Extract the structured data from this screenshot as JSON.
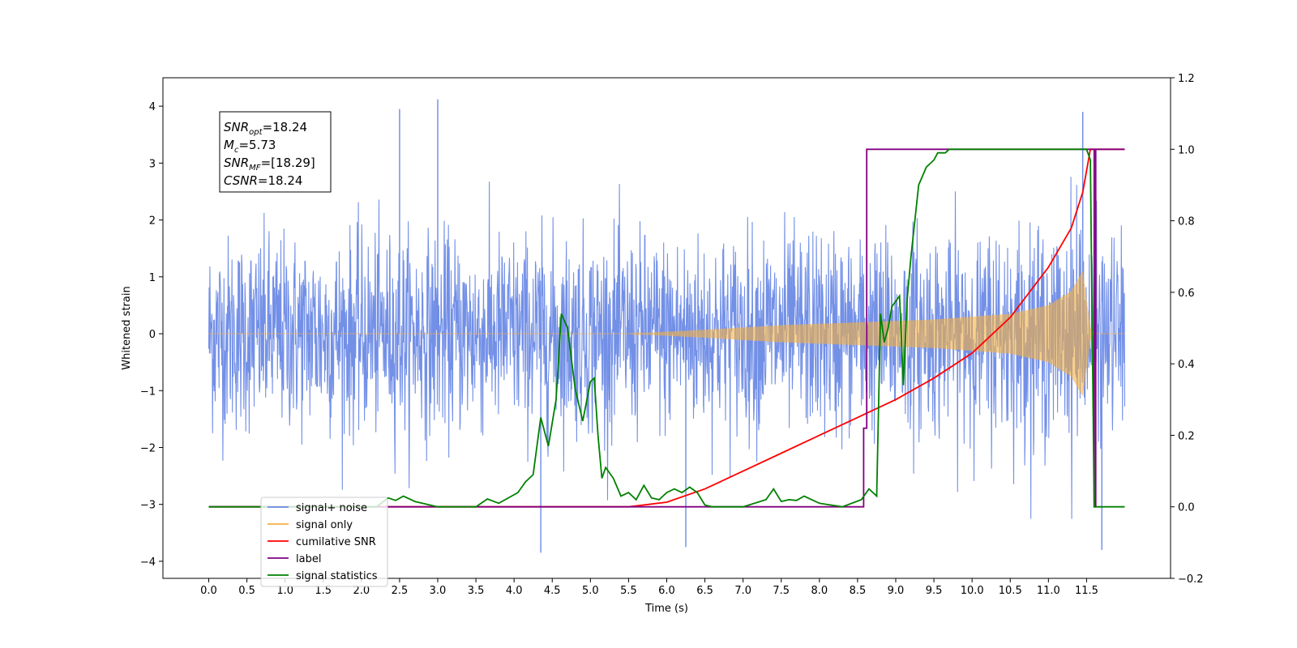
{
  "chart_data": {
    "type": "line",
    "xlabel": "Time (s)",
    "ylabel_left": "Whitened strain",
    "ylabel_right": "",
    "xlim": [
      -0.6,
      12.6
    ],
    "ylim_left": [
      -4.3,
      4.5
    ],
    "ylim_right": [
      -0.2,
      1.2
    ],
    "x_ticks": [
      0.0,
      0.5,
      1.0,
      1.5,
      2.0,
      2.5,
      3.0,
      3.5,
      4.0,
      4.5,
      5.0,
      5.5,
      6.0,
      6.5,
      7.0,
      7.5,
      8.0,
      8.5,
      9.0,
      9.5,
      10.0,
      10.5,
      11.0,
      11.5
    ],
    "x_tick_labels": [
      "0.0",
      "0.5",
      "1.0",
      "1.5",
      "2.0",
      "2.5",
      "3.0",
      "3.5",
      "4.0",
      "4.5",
      "5.0",
      "5.5",
      "6.0",
      "6.5",
      "7.0",
      "7.5",
      "8.0",
      "8.5",
      "9.0",
      "9.5",
      "10.0",
      "10.5",
      "11.0",
      "11.5"
    ],
    "y_ticks_left": [
      -4,
      -3,
      -2,
      -1,
      0,
      1,
      2,
      3,
      4
    ],
    "y_tick_labels_left": [
      "−4",
      "−3",
      "−2",
      "−1",
      "0",
      "1",
      "2",
      "3",
      "4"
    ],
    "y_ticks_right": [
      -0.2,
      0.0,
      0.2,
      0.4,
      0.6,
      0.8,
      1.0,
      1.2
    ],
    "y_tick_labels_right": [
      "−0.2",
      "0.0",
      "0.2",
      "0.4",
      "0.6",
      "0.8",
      "1.0",
      "1.2"
    ],
    "grid": false,
    "legend_position": "lower-left",
    "annotation_box": {
      "lines": [
        {
          "sym": "SNR",
          "sub": "opt",
          "rest": "=18.24"
        },
        {
          "sym": "M",
          "sub": "c",
          "rest": "=5.73"
        },
        {
          "sym": "SNR",
          "sub": "MF",
          "rest": "=[18.29]"
        },
        {
          "sym": "CSNR",
          "sub": "",
          "rest": "=18.24"
        }
      ]
    },
    "series": [
      {
        "name": "signal+ noise",
        "axis": "left",
        "color": "#6b8ae6",
        "kind": "noise",
        "x_range": [
          0.0,
          12.0
        ],
        "approx_envelope": [
          -2.5,
          2.5
        ],
        "approx_peaks": [
          [
            2.5,
            3.95
          ],
          [
            3.0,
            4.12
          ],
          [
            11.45,
            3.9
          ],
          [
            4.35,
            -3.85
          ],
          [
            6.25,
            -3.75
          ],
          [
            11.7,
            -3.8
          ]
        ]
      },
      {
        "name": "signal only",
        "axis": "left",
        "color": "#f5b041",
        "kind": "chirp",
        "x_range": [
          0.0,
          12.0
        ],
        "approx_amplitude": [
          [
            0.0,
            0.0
          ],
          [
            5.5,
            0.0
          ],
          [
            6.5,
            0.07
          ],
          [
            7.5,
            0.15
          ],
          [
            8.5,
            0.2
          ],
          [
            9.5,
            0.25
          ],
          [
            10.5,
            0.35
          ],
          [
            11.0,
            0.5
          ],
          [
            11.3,
            0.75
          ],
          [
            11.45,
            1.1
          ],
          [
            11.55,
            0.1
          ],
          [
            11.6,
            0.0
          ],
          [
            12.0,
            0.0
          ]
        ]
      },
      {
        "name": "cumilative SNR",
        "axis": "right",
        "color": "#ff0000",
        "x": [
          0.0,
          5.5,
          6.0,
          6.5,
          7.0,
          7.5,
          8.0,
          8.5,
          9.0,
          9.5,
          10.0,
          10.5,
          11.0,
          11.3,
          11.45,
          11.55,
          11.56,
          12.0
        ],
        "y": [
          0.0,
          0.0,
          0.013,
          0.05,
          0.1,
          0.15,
          0.2,
          0.25,
          0.3,
          0.36,
          0.43,
          0.53,
          0.67,
          0.78,
          0.88,
          1.0,
          1.0,
          1.0
        ]
      },
      {
        "name": "label",
        "axis": "right",
        "color": "#800080",
        "x": [
          0.0,
          8.58,
          8.58,
          8.62,
          8.62,
          11.6,
          11.6,
          11.62,
          11.62,
          12.0
        ],
        "y": [
          0.0,
          0.0,
          0.22,
          0.22,
          1.0,
          1.0,
          0.0,
          0.0,
          1.0,
          1.0
        ]
      },
      {
        "name": "signal statistics",
        "axis": "right",
        "color": "#008000",
        "x": [
          0.0,
          2.2,
          2.35,
          2.45,
          2.55,
          2.7,
          3.0,
          3.5,
          3.65,
          3.8,
          3.95,
          4.05,
          4.15,
          4.25,
          4.35,
          4.45,
          4.55,
          4.62,
          4.7,
          4.8,
          4.9,
          5.0,
          5.05,
          5.1,
          5.15,
          5.2,
          5.3,
          5.4,
          5.5,
          5.6,
          5.7,
          5.8,
          5.9,
          6.0,
          6.1,
          6.2,
          6.3,
          6.4,
          6.5,
          6.6,
          6.7,
          7.0,
          7.3,
          7.4,
          7.5,
          7.6,
          7.7,
          7.8,
          7.9,
          8.0,
          8.3,
          8.55,
          8.65,
          8.75,
          8.8,
          8.85,
          8.9,
          8.95,
          9.05,
          9.1,
          9.15,
          9.2,
          9.3,
          9.4,
          9.5,
          9.55,
          9.65,
          9.7,
          9.8,
          10.0,
          11.4,
          11.5,
          11.55,
          11.6,
          11.65,
          12.0
        ],
        "y": [
          0.0,
          0.0,
          0.025,
          0.018,
          0.03,
          0.015,
          0.0,
          0.0,
          0.022,
          0.01,
          0.028,
          0.04,
          0.07,
          0.09,
          0.25,
          0.17,
          0.3,
          0.54,
          0.5,
          0.33,
          0.24,
          0.35,
          0.36,
          0.2,
          0.08,
          0.11,
          0.08,
          0.03,
          0.04,
          0.02,
          0.06,
          0.025,
          0.02,
          0.04,
          0.05,
          0.04,
          0.055,
          0.04,
          0.005,
          0.0,
          0.0,
          0.0,
          0.02,
          0.05,
          0.015,
          0.02,
          0.018,
          0.03,
          0.02,
          0.01,
          0.0,
          0.02,
          0.05,
          0.03,
          0.54,
          0.46,
          0.5,
          0.56,
          0.59,
          0.34,
          0.58,
          0.7,
          0.9,
          0.95,
          0.97,
          0.99,
          0.99,
          1.0,
          1.0,
          1.0,
          1.0,
          1.0,
          0.97,
          0.0,
          0.0,
          0.0
        ]
      }
    ],
    "legend": [
      {
        "label": "signal+ noise",
        "color": "#6b8ae6"
      },
      {
        "label": "signal only",
        "color": "#f5b041"
      },
      {
        "label": "cumilative SNR",
        "color": "#ff0000"
      },
      {
        "label": "label",
        "color": "#800080"
      },
      {
        "label": "signal statistics",
        "color": "#008000"
      }
    ],
    "legend_hidden_text": [
      "signal only"
    ]
  }
}
